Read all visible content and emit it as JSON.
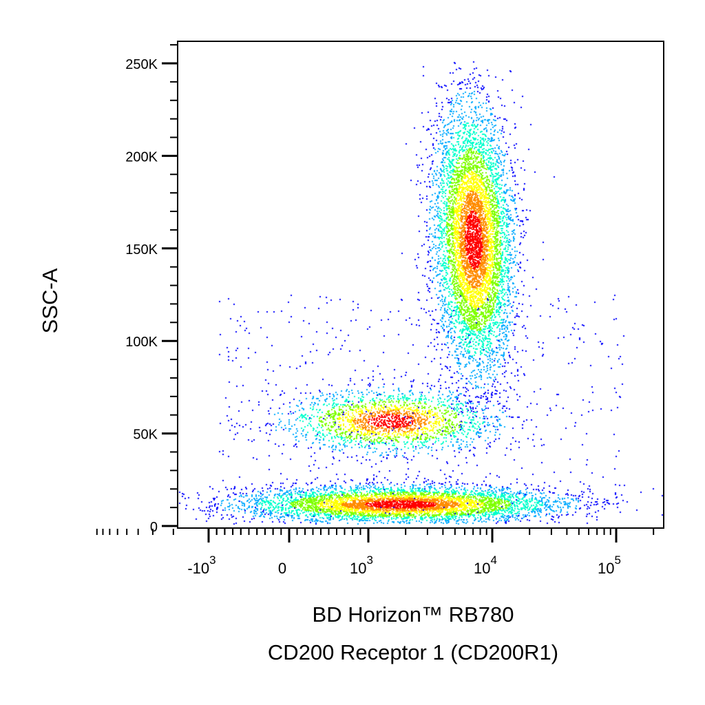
{
  "chart_data": {
    "type": "scatter",
    "plot_style": "pseudocolor density dot plot",
    "xlabel_lines": [
      "BD Horizon™ RB780",
      "CD200 Receptor 1 (CD200R1)"
    ],
    "ylabel": "SSC-A",
    "x_scale": "biexponential",
    "xlim": [
      -2000,
      250000
    ],
    "ylim": [
      -3000,
      262144
    ],
    "y_ticks": [
      {
        "value": 0,
        "label": "0"
      },
      {
        "value": 50000,
        "label": "50K"
      },
      {
        "value": 100000,
        "label": "100K"
      },
      {
        "value": 150000,
        "label": "150K"
      },
      {
        "value": 200000,
        "label": "200K"
      },
      {
        "value": 250000,
        "label": "250K"
      }
    ],
    "x_ticks": [
      {
        "value": -1000,
        "base": "-10",
        "exp": "3"
      },
      {
        "value": 0,
        "base": "0",
        "exp": ""
      },
      {
        "value": 1000,
        "base": "10",
        "exp": "3"
      },
      {
        "value": 10000,
        "base": "10",
        "exp": "4"
      },
      {
        "value": 100000,
        "base": "10",
        "exp": "5"
      }
    ],
    "density_colors": [
      "#0000ff",
      "#00aaff",
      "#00ffcc",
      "#7fff00",
      "#ffff00",
      "#ff8c00",
      "#ff0000"
    ],
    "populations": [
      {
        "name_shown": "",
        "x_center": 7000,
        "y_center": 160000,
        "x_spread_decades": 0.12,
        "y_sd": 33000,
        "peak_density": "red"
      },
      {
        "name_shown": "",
        "x_center": 1500,
        "y_center": 57000,
        "x_spread_decades": 0.45,
        "y_sd": 9000,
        "peak_density": "cyan"
      },
      {
        "name_shown": "",
        "x_center": 1800,
        "y_center": 12000,
        "x_spread_decades": 0.6,
        "y_sd": 5000,
        "peak_density": "red"
      }
    ]
  }
}
